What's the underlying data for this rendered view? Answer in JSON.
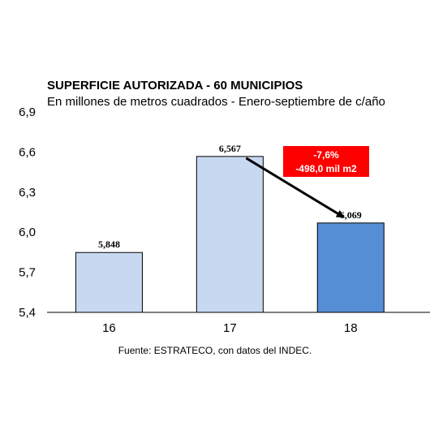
{
  "chart_data": {
    "type": "bar",
    "title": "SUPERFICIE AUTORIZADA  - 60 MUNICIPIOS",
    "subtitle": "En millones de metros cuadrados - Enero-septiembre de c/año",
    "categories": [
      "16",
      "17",
      "18"
    ],
    "values": [
      5.848,
      6.567,
      6.069
    ],
    "data_labels": [
      "5,848",
      "6,567",
      "6,069"
    ],
    "ylim": [
      5.4,
      6.9
    ],
    "yticks": [
      5.4,
      5.7,
      6.0,
      6.3,
      6.6,
      6.9
    ],
    "ytick_labels": [
      "5,4",
      "5,7",
      "6,0",
      "6,3",
      "6,6",
      "6,9"
    ],
    "grid": false,
    "bar_colors": [
      "#c6d9f1",
      "#c6d9f1",
      "#558ed5"
    ],
    "annotation": {
      "line1": "-7,6%",
      "line2": "-498,0 mil m2",
      "background": "#ff0000",
      "from_category": "17",
      "to_category": "18"
    },
    "source": "Fuente: ESTRATECO, con datos del INDEC."
  }
}
